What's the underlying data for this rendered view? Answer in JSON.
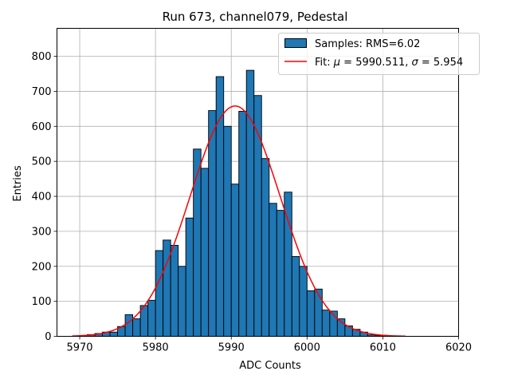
{
  "chart_data": {
    "type": "bar",
    "title": "Run 673, channel079, Pedestal",
    "xlabel": "ADC Counts",
    "ylabel": "Entries",
    "xlim": [
      5967,
      6020
    ],
    "ylim": [
      0,
      880
    ],
    "xticks": [
      5970,
      5980,
      5990,
      6000,
      6010,
      6020
    ],
    "yticks": [
      0,
      100,
      200,
      300,
      400,
      500,
      600,
      700,
      800
    ],
    "grid": true,
    "legend_position": "top-right",
    "histogram": {
      "name": "Samples: RMS=6.02",
      "color": "#1f77b4",
      "bin_start": 5970,
      "bin_width": 1,
      "counts": [
        2,
        5,
        8,
        12,
        12,
        28,
        62,
        50,
        88,
        103,
        245,
        275,
        260,
        200,
        338,
        535,
        480,
        645,
        742,
        600,
        435,
        643,
        760,
        688,
        508,
        380,
        360,
        412,
        228,
        200,
        130,
        135,
        75,
        72,
        50,
        30,
        20,
        12,
        4,
        2,
        2
      ]
    },
    "fit": {
      "name_prefix": "Fit: ",
      "mu_symbol": "μ",
      "mu_text": " = 5990.511, ",
      "sigma_symbol": "σ",
      "sigma_text": " = 5.954",
      "color": "#ff0000",
      "mu": 5990.511,
      "sigma": 5.954,
      "amplitude": 658,
      "x_range": [
        5969,
        6013
      ]
    }
  }
}
